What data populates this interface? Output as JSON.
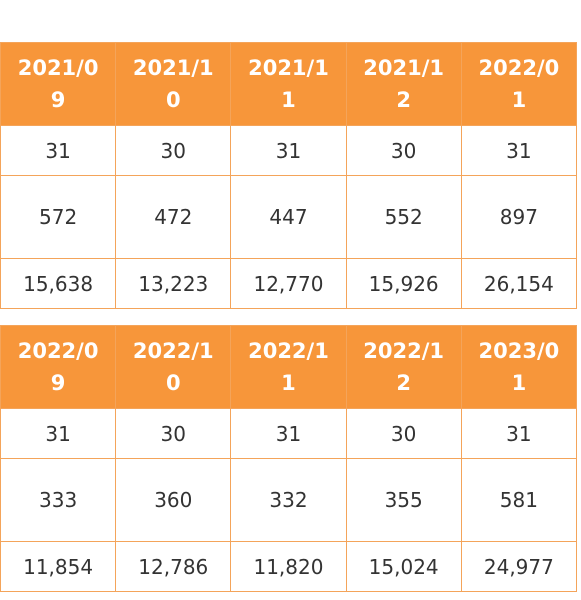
{
  "tables": [
    {
      "header": [
        "2021/09",
        "2021/10",
        "2021/11",
        "2021/12",
        "2022/01"
      ],
      "rows": [
        [
          "31",
          "30",
          "31",
          "30",
          "31"
        ],
        [
          "572",
          "472",
          "447",
          "552",
          "897"
        ],
        [
          "15,638",
          "13,223",
          "12,770",
          "15,926",
          "26,154"
        ]
      ]
    },
    {
      "header": [
        "2022/09",
        "2022/10",
        "2022/11",
        "2022/12",
        "2023/01"
      ],
      "rows": [
        [
          "31",
          "30",
          "31",
          "30",
          "31"
        ],
        [
          "333",
          "360",
          "332",
          "355",
          "581"
        ],
        [
          "11,854",
          "12,786",
          "11,820",
          "15,024",
          "24,977"
        ]
      ]
    }
  ]
}
